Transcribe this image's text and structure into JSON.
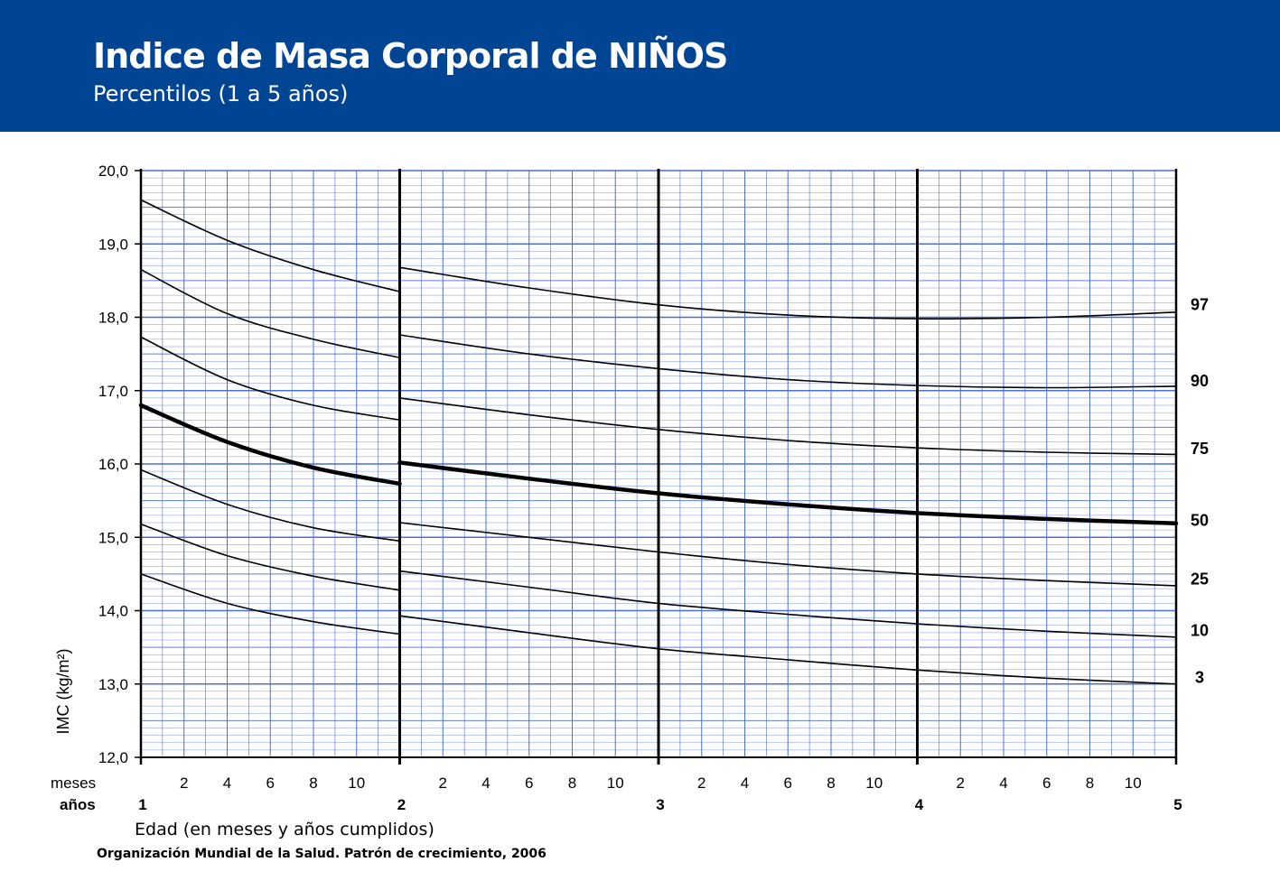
{
  "header": {
    "title": "Indice de Masa Corporal de NIÑOS",
    "subtitle": "Percentilos (1 a 5 años)",
    "background_color": "#004494"
  },
  "source": "Organización Mundial de la Salud. Patrón de crecimiento, 2006",
  "chart_data": {
    "type": "line",
    "title": "Indice de Masa Corporal de NIÑOS",
    "subtitle": "Percentilos (1 a 5 años)",
    "ylabel": "IMC (kg/m²)",
    "xlabel": "Edad (en meses y años cumplidos)",
    "xlim": [
      12,
      60
    ],
    "ylim": [
      12,
      20
    ],
    "y_ticks": [
      "12,0",
      "13,0",
      "14,0",
      "15,0",
      "16,0",
      "17,0",
      "18,0",
      "19,0",
      "20,0"
    ],
    "x_row_labels": {
      "months": "meses",
      "years": "años"
    },
    "month_ticks": [
      "2",
      "4",
      "6",
      "8",
      "10"
    ],
    "year_ticks": [
      "1",
      "2",
      "3",
      "4",
      "5"
    ],
    "grid": true,
    "grid_color": "#4f6fd0",
    "line_color": "#000000",
    "emphasized_series": "50",
    "series": [
      {
        "name": "97",
        "segments": [
          {
            "x": [
              12,
              16,
              20,
              24
            ],
            "y": [
              19.6,
              19.05,
              18.65,
              18.35
            ]
          },
          {
            "x": [
              24,
              30,
              36,
              42,
              48,
              54,
              60
            ],
            "y": [
              18.68,
              18.4,
              18.17,
              18.03,
              17.98,
              18.0,
              18.07
            ]
          }
        ]
      },
      {
        "name": "90",
        "segments": [
          {
            "x": [
              12,
              16,
              20,
              24
            ],
            "y": [
              18.65,
              18.05,
              17.7,
              17.45
            ]
          },
          {
            "x": [
              24,
              30,
              36,
              42,
              48,
              54,
              60
            ],
            "y": [
              17.76,
              17.5,
              17.3,
              17.15,
              17.07,
              17.04,
              17.06
            ]
          }
        ]
      },
      {
        "name": "75",
        "segments": [
          {
            "x": [
              12,
              16,
              20,
              24
            ],
            "y": [
              17.73,
              17.15,
              16.8,
              16.6
            ]
          },
          {
            "x": [
              24,
              30,
              36,
              42,
              48,
              54,
              60
            ],
            "y": [
              16.9,
              16.67,
              16.47,
              16.32,
              16.22,
              16.16,
              16.13
            ]
          }
        ]
      },
      {
        "name": "50",
        "segments": [
          {
            "x": [
              12,
              16,
              20,
              24
            ],
            "y": [
              16.8,
              16.3,
              15.95,
              15.73
            ]
          },
          {
            "x": [
              24,
              30,
              36,
              42,
              48,
              54,
              60
            ],
            "y": [
              16.02,
              15.8,
              15.6,
              15.45,
              15.33,
              15.25,
              15.19
            ]
          }
        ]
      },
      {
        "name": "25",
        "segments": [
          {
            "x": [
              12,
              16,
              20,
              24
            ],
            "y": [
              15.92,
              15.45,
              15.13,
              14.95
            ]
          },
          {
            "x": [
              24,
              30,
              36,
              42,
              48,
              54,
              60
            ],
            "y": [
              15.2,
              15.0,
              14.8,
              14.63,
              14.5,
              14.41,
              14.34
            ]
          }
        ]
      },
      {
        "name": "10",
        "segments": [
          {
            "x": [
              12,
              16,
              20,
              24
            ],
            "y": [
              15.18,
              14.75,
              14.47,
              14.28
            ]
          },
          {
            "x": [
              24,
              30,
              36,
              42,
              48,
              54,
              60
            ],
            "y": [
              14.54,
              14.32,
              14.1,
              13.95,
              13.82,
              13.72,
              13.64
            ]
          }
        ]
      },
      {
        "name": "3",
        "segments": [
          {
            "x": [
              12,
              16,
              20,
              24
            ],
            "y": [
              14.5,
              14.1,
              13.85,
              13.68
            ]
          },
          {
            "x": [
              24,
              30,
              36,
              42,
              48,
              54,
              60
            ],
            "y": [
              13.93,
              13.7,
              13.48,
              13.33,
              13.19,
              13.08,
              13.0
            ]
          }
        ]
      }
    ],
    "percentile_labels": [
      {
        "label": "97",
        "y": 18.17
      },
      {
        "label": "90",
        "y": 17.13
      },
      {
        "label": "75",
        "y": 16.21
      },
      {
        "label": "50",
        "y": 15.23
      },
      {
        "label": "25",
        "y": 14.43
      },
      {
        "label": "10",
        "y": 13.73
      },
      {
        "label": "3",
        "y": 13.09
      }
    ]
  }
}
